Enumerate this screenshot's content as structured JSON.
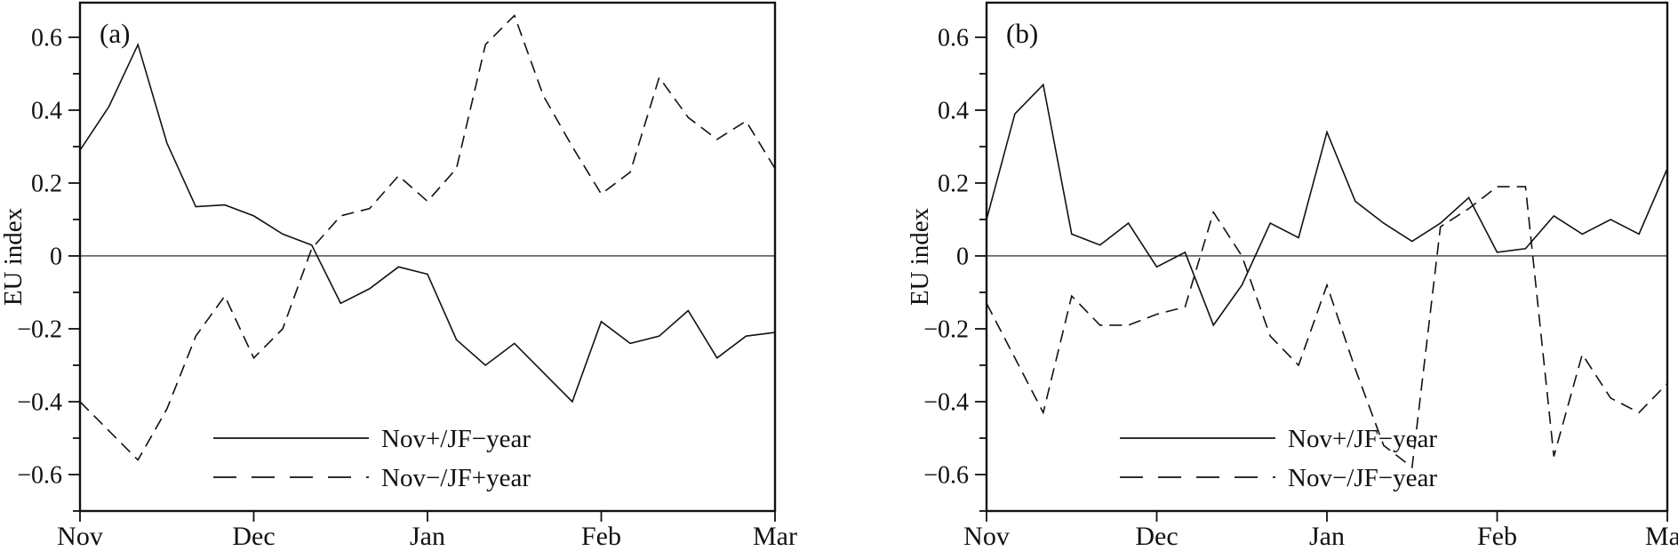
{
  "figure": {
    "background": "#ffffff",
    "line_color": "#111111"
  },
  "chart_data": [
    {
      "type": "line",
      "panel_label": "(a)",
      "ylabel": "EU index",
      "xlabel": "",
      "x_tick_labels": [
        "Nov",
        "Dec",
        "Jan",
        "Feb",
        "Mar"
      ],
      "y_tick_values": [
        0.6,
        0.4,
        0.2,
        0,
        -0.2,
        -0.4,
        -0.6
      ],
      "y_tick_labels": [
        "0.6",
        "0.4",
        "0.2",
        "0",
        "−0.2",
        "−0.4",
        "−0.6"
      ],
      "ylim": [
        -0.7,
        0.695
      ],
      "points_per_month": 6,
      "grid": false,
      "zero_reference_line": true,
      "legend_position": "inside lower-left",
      "series": [
        {
          "name": "Nov+/JF−year",
          "style": "solid",
          "values": [
            0.29,
            0.41,
            0.58,
            0.31,
            0.135,
            0.14,
            0.11,
            0.06,
            0.03,
            -0.13,
            -0.09,
            -0.03,
            -0.05,
            -0.23,
            -0.3,
            -0.24,
            -0.32,
            -0.4,
            -0.18,
            -0.24,
            -0.22,
            -0.15,
            -0.28,
            -0.22,
            -0.21
          ]
        },
        {
          "name": "Nov−/JF+year",
          "style": "dashed",
          "values": [
            -0.4,
            -0.48,
            -0.56,
            -0.42,
            -0.22,
            -0.11,
            -0.28,
            -0.2,
            0.02,
            0.11,
            0.13,
            0.22,
            0.15,
            0.24,
            0.58,
            0.66,
            0.44,
            0.3,
            0.17,
            0.23,
            0.49,
            0.38,
            0.32,
            0.37,
            0.24
          ]
        }
      ]
    },
    {
      "type": "line",
      "panel_label": "(b)",
      "ylabel": "EU index",
      "xlabel": "",
      "x_tick_labels": [
        "Nov",
        "Dec",
        "Jan",
        "Feb",
        "Mar"
      ],
      "y_tick_values": [
        0.6,
        0.4,
        0.2,
        0,
        -0.2,
        -0.4,
        -0.6
      ],
      "y_tick_labels": [
        "0.6",
        "0.4",
        "0.2",
        "0",
        "−0.2",
        "−0.4",
        "−0.6"
      ],
      "ylim": [
        -0.7,
        0.695
      ],
      "points_per_month": 6,
      "grid": false,
      "zero_reference_line": true,
      "legend_position": "inside lower-left",
      "series": [
        {
          "name": "Nov+/JF−year",
          "style": "solid",
          "values": [
            0.1,
            0.39,
            0.47,
            0.06,
            0.03,
            0.09,
            -0.03,
            0.01,
            -0.19,
            -0.08,
            0.09,
            0.05,
            0.34,
            0.15,
            0.09,
            0.04,
            0.09,
            0.16,
            0.01,
            0.02,
            0.11,
            0.06,
            0.1,
            0.06,
            0.24
          ]
        },
        {
          "name": "Nov−/JF−year",
          "style": "dashed",
          "values": [
            -0.13,
            -0.28,
            -0.43,
            -0.11,
            -0.19,
            -0.19,
            -0.16,
            -0.14,
            0.12,
            0.0,
            -0.22,
            -0.3,
            -0.08,
            -0.31,
            -0.52,
            -0.58,
            0.08,
            0.13,
            0.19,
            0.19,
            -0.55,
            -0.27,
            -0.39,
            -0.43,
            -0.35
          ]
        }
      ]
    }
  ]
}
